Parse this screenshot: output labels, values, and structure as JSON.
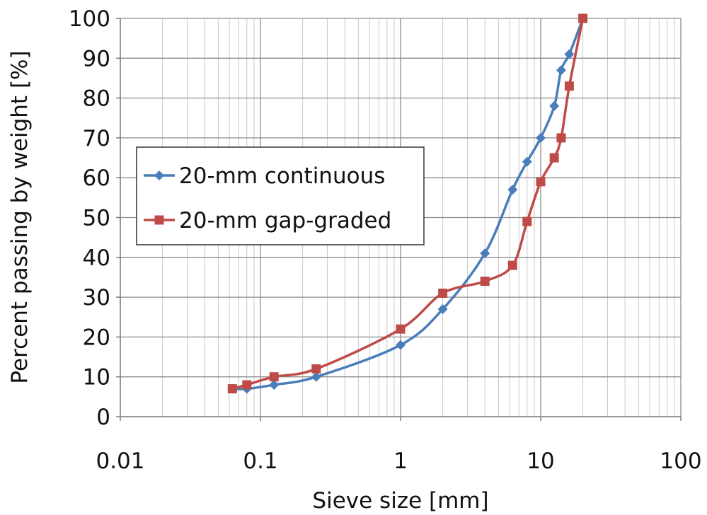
{
  "chart_data": {
    "type": "line",
    "xlabel": "Sieve size [mm]",
    "ylabel": "Percent passing by weight [%]",
    "x_scale": "log",
    "xlim": [
      0.01,
      100
    ],
    "ylim": [
      0,
      100
    ],
    "x_ticks": [
      0.01,
      0.1,
      1,
      10,
      100
    ],
    "x_tick_labels": [
      "0.01",
      "0.1",
      "1",
      "10",
      "100"
    ],
    "y_ticks": [
      0,
      10,
      20,
      30,
      40,
      50,
      60,
      70,
      80,
      90,
      100
    ],
    "y_tick_labels": [
      "0",
      "10",
      "20",
      "30",
      "40",
      "50",
      "60",
      "70",
      "80",
      "90",
      "100"
    ],
    "grid": "on (major and minor log grid)",
    "legend_position": "center-left",
    "series": [
      {
        "name": "20-mm continuous",
        "color": "#4a7ebb",
        "marker": "diamond",
        "x": [
          0.063,
          0.08,
          0.125,
          0.25,
          1,
          2,
          4,
          6.3,
          8,
          10,
          12.5,
          14,
          16,
          20
        ],
        "y": [
          7,
          7,
          8,
          10,
          18,
          27,
          41,
          57,
          64,
          70,
          78,
          87,
          91,
          100
        ]
      },
      {
        "name": "20-mm gap-graded",
        "color": "#be4b48",
        "marker": "square",
        "x": [
          0.063,
          0.08,
          0.125,
          0.25,
          1,
          2,
          4,
          6.3,
          8,
          10,
          12.5,
          14,
          16,
          20
        ],
        "y": [
          7,
          8,
          10,
          12,
          22,
          31,
          34,
          38,
          49,
          59,
          65,
          70,
          83,
          100
        ]
      }
    ]
  }
}
